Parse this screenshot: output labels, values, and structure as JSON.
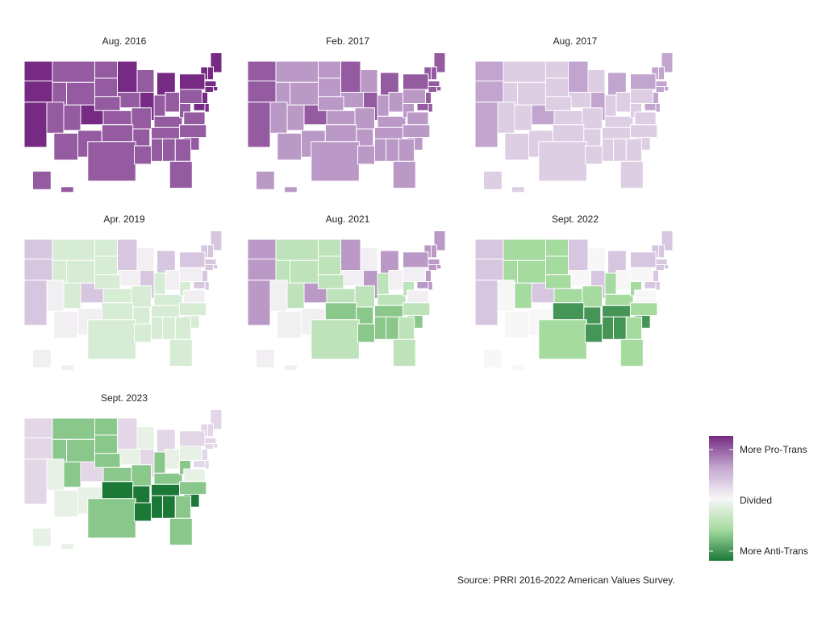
{
  "map_type": "choropleth",
  "region": "United States (by state)",
  "panels": [
    {
      "title": "Aug. 2016",
      "tone": "strong-pro"
    },
    {
      "title": "Feb. 2017",
      "tone": "moderate-pro"
    },
    {
      "title": "Aug. 2017",
      "tone": "light-pro"
    },
    {
      "title": "Apr. 2019",
      "tone": "near-divided"
    },
    {
      "title": "Aug. 2021",
      "tone": "mixed"
    },
    {
      "title": "Sept. 2022",
      "tone": "mixed-anti-south"
    },
    {
      "title": "Sept. 2023",
      "tone": "strong-anti-south"
    }
  ],
  "legend": {
    "top_label": "More Pro-Trans",
    "middle_label": "Divided",
    "bottom_label": "More Anti-Trans",
    "color_scale": [
      "#762a83",
      "#c2a5cf",
      "#f7f7f7",
      "#a6dba0",
      "#1b7837"
    ]
  },
  "source": "Source: PRRI 2016-2022 American Values Survey."
}
